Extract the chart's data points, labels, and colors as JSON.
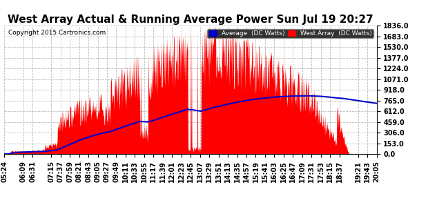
{
  "title": "West Array Actual & Running Average Power Sun Jul 19 20:27",
  "copyright": "Copyright 2015 Cartronics.com",
  "legend_avg": "Average  (DC Watts)",
  "legend_west": "West Array  (DC Watts)",
  "yticks": [
    0.0,
    153.0,
    306.0,
    459.0,
    612.0,
    765.0,
    918.0,
    1071.0,
    1224.0,
    1377.0,
    1530.0,
    1683.0,
    1836.0
  ],
  "ymax": 1836.0,
  "ymin": 0.0,
  "bg_color": "#ffffff",
  "plot_bg_color": "#ffffff",
  "grid_color": "#bbbbbb",
  "red_color": "#ff0000",
  "blue_color": "#0000cc",
  "title_fontsize": 11,
  "tick_fontsize": 7
}
